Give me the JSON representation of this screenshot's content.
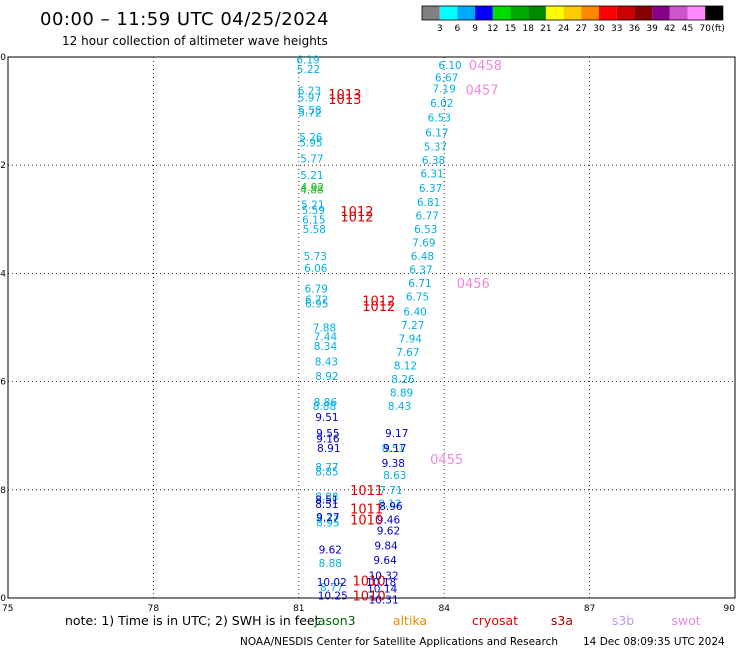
{
  "title": "00:00 – 11:59 UTC 04/25/2024",
  "subtitle": "12 hour collection of altimeter wave heights",
  "colorbar": {
    "labels": [
      "3",
      "6",
      "9",
      "12",
      "15",
      "18",
      "21",
      "24",
      "27",
      "30",
      "33",
      "36",
      "39",
      "42",
      "45",
      "70"
    ],
    "unit": "(ft)",
    "colors": [
      "#808080",
      "#00ffff",
      "#00aaff",
      "#0000ff",
      "#00dd00",
      "#00aa00",
      "#008800",
      "#ffff00",
      "#ffcc00",
      "#ff8800",
      "#ff0000",
      "#cc0000",
      "#880000",
      "#880088",
      "#cc55cc",
      "#ff88ff",
      "#000000"
    ]
  },
  "chart_data": {
    "type": "scatter",
    "xlim": [
      75,
      90
    ],
    "ylim": [
      -10,
      0
    ],
    "x_ticks": [
      "75",
      "78",
      "81",
      "84",
      "87",
      "90"
    ],
    "y_ticks": [
      "0",
      "-2",
      "-4",
      "-6",
      "-8",
      "-10"
    ],
    "grid": true,
    "series": [
      {
        "name": "jason3",
        "color": "#00b0e0",
        "points": [
          {
            "x": 81.19,
            "y": -0.05,
            "v": "6.19"
          },
          {
            "x": 81.2,
            "y": -0.22,
            "v": "5.22"
          },
          {
            "x": 81.22,
            "y": -0.62,
            "v": "6.23"
          },
          {
            "x": 81.22,
            "y": -0.75,
            "v": "5.97"
          },
          {
            "x": 81.23,
            "y": -0.98,
            "v": "5.58"
          },
          {
            "x": 81.23,
            "y": -1.03,
            "v": "5.72"
          },
          {
            "x": 81.25,
            "y": -1.48,
            "v": "5.26"
          },
          {
            "x": 81.25,
            "y": -1.58,
            "v": "5.95"
          },
          {
            "x": 81.27,
            "y": -1.88,
            "v": "5.77"
          },
          {
            "x": 81.27,
            "y": -2.18,
            "v": "5.21"
          },
          {
            "x": 81.29,
            "y": -2.73,
            "v": "5.21"
          },
          {
            "x": 81.3,
            "y": -2.83,
            "v": "5.59"
          },
          {
            "x": 81.31,
            "y": -3.0,
            "v": "6.15"
          },
          {
            "x": 81.32,
            "y": -3.18,
            "v": "5.58"
          },
          {
            "x": 81.34,
            "y": -3.68,
            "v": "5.73"
          },
          {
            "x": 81.35,
            "y": -3.9,
            "v": "6.06"
          },
          {
            "x": 81.36,
            "y": -4.28,
            "v": "6.79"
          },
          {
            "x": 81.37,
            "y": -4.48,
            "v": "6.72"
          },
          {
            "x": 81.37,
            "y": -4.56,
            "v": "6.95"
          },
          {
            "x": 81.53,
            "y": -6.45,
            "v": "8.88"
          },
          {
            "x": 81.58,
            "y": -7.58,
            "v": "8.77"
          },
          {
            "x": 81.58,
            "y": -7.66,
            "v": "8.85"
          },
          {
            "x": 81.58,
            "y": -8.12,
            "v": "8.88"
          },
          {
            "x": 81.6,
            "y": -8.53,
            "v": "8.72"
          },
          {
            "x": 81.6,
            "y": -8.6,
            "v": "8.95"
          },
          {
            "x": 81.65,
            "y": -9.35,
            "v": "8.88"
          },
          {
            "x": 81.68,
            "y": -9.8,
            "v": "8.77"
          },
          {
            "x": 84.12,
            "y": -0.15,
            "v": "6.10"
          },
          {
            "x": 84.05,
            "y": -0.38,
            "v": "6.67"
          },
          {
            "x": 84.0,
            "y": -0.58,
            "v": "7.19"
          },
          {
            "x": 83.95,
            "y": -0.85,
            "v": "6.02"
          },
          {
            "x": 83.9,
            "y": -1.12,
            "v": "6.53"
          },
          {
            "x": 83.85,
            "y": -1.4,
            "v": "6.17"
          },
          {
            "x": 83.82,
            "y": -1.65,
            "v": "5.37"
          },
          {
            "x": 83.78,
            "y": -1.9,
            "v": "6.38"
          },
          {
            "x": 83.75,
            "y": -2.15,
            "v": "6.31"
          },
          {
            "x": 83.72,
            "y": -2.42,
            "v": "6.37"
          },
          {
            "x": 83.68,
            "y": -2.68,
            "v": "6.81"
          },
          {
            "x": 83.65,
            "y": -2.93,
            "v": "6.77"
          },
          {
            "x": 83.62,
            "y": -3.18,
            "v": "6.53"
          },
          {
            "x": 83.58,
            "y": -3.43,
            "v": "7.69"
          },
          {
            "x": 83.55,
            "y": -3.68,
            "v": "6.48"
          },
          {
            "x": 83.52,
            "y": -3.93,
            "v": "6.37"
          },
          {
            "x": 83.5,
            "y": -4.18,
            "v": "6.71"
          },
          {
            "x": 83.45,
            "y": -4.43,
            "v": "6.75"
          },
          {
            "x": 83.4,
            "y": -4.7,
            "v": "6.40"
          },
          {
            "x": 83.35,
            "y": -4.95,
            "v": "7.27"
          },
          {
            "x": 83.3,
            "y": -5.2,
            "v": "7.94"
          },
          {
            "x": 83.25,
            "y": -5.45,
            "v": "7.67"
          },
          {
            "x": 83.2,
            "y": -5.7,
            "v": "8.12"
          },
          {
            "x": 83.15,
            "y": -5.95,
            "v": "8.26"
          },
          {
            "x": 83.12,
            "y": -6.2,
            "v": "8.89"
          },
          {
            "x": 83.08,
            "y": -6.45,
            "v": "8.43"
          },
          {
            "x": 82.95,
            "y": -7.23,
            "v": "8.51"
          },
          {
            "x": 82.98,
            "y": -7.73,
            "v": "8.63"
          },
          {
            "x": 82.9,
            "y": -8.0,
            "v": "7.71"
          },
          {
            "x": 82.88,
            "y": -8.25,
            "v": "8.12"
          },
          {
            "x": 81.53,
            "y": -5.0,
            "v": "7.88"
          },
          {
            "x": 81.55,
            "y": -5.17,
            "v": "7.44"
          },
          {
            "x": 81.55,
            "y": -5.34,
            "v": "8.34"
          },
          {
            "x": 81.57,
            "y": -5.63,
            "v": "8.43"
          },
          {
            "x": 81.58,
            "y": -5.9,
            "v": "8.92"
          },
          {
            "x": 81.55,
            "y": -6.38,
            "v": "8.86"
          }
        ]
      },
      {
        "name": "jason3-green",
        "color": "#22bb22",
        "points": [
          {
            "x": 81.28,
            "y": -2.4,
            "v": "4.92"
          },
          {
            "x": 81.27,
            "y": -2.45,
            "v": "4.88"
          }
        ]
      },
      {
        "name": "sentinel-blue",
        "color": "#0000cc",
        "points": [
          {
            "x": 81.58,
            "y": -6.65,
            "v": "9.51"
          },
          {
            "x": 81.6,
            "y": -6.95,
            "v": "9.55"
          },
          {
            "x": 81.6,
            "y": -7.05,
            "v": "9.16"
          },
          {
            "x": 81.62,
            "y": -7.23,
            "v": "8.91"
          },
          {
            "x": 81.58,
            "y": -8.18,
            "v": "8.51"
          },
          {
            "x": 81.58,
            "y": -8.26,
            "v": "8.51"
          },
          {
            "x": 81.6,
            "y": -8.5,
            "v": "9.27"
          },
          {
            "x": 81.65,
            "y": -9.1,
            "v": "9.62"
          },
          {
            "x": 81.68,
            "y": -9.7,
            "v": "10.02"
          },
          {
            "x": 81.7,
            "y": -9.95,
            "v": "10.25"
          },
          {
            "x": 83.02,
            "y": -6.95,
            "v": "9.17"
          },
          {
            "x": 82.98,
            "y": -7.23,
            "v": "9.17"
          },
          {
            "x": 82.95,
            "y": -7.5,
            "v": "9.38"
          },
          {
            "x": 82.9,
            "y": -8.3,
            "v": "8.96"
          },
          {
            "x": 82.85,
            "y": -8.55,
            "v": "9.46"
          },
          {
            "x": 82.85,
            "y": -8.75,
            "v": "9.62"
          },
          {
            "x": 82.8,
            "y": -9.03,
            "v": "9.84"
          },
          {
            "x": 82.78,
            "y": -9.3,
            "v": "9.64"
          },
          {
            "x": 82.75,
            "y": -9.58,
            "v": "10.32"
          },
          {
            "x": 82.7,
            "y": -9.7,
            "v": "10.18"
          },
          {
            "x": 82.72,
            "y": -9.82,
            "v": "10.14"
          },
          {
            "x": 82.75,
            "y": -10.03,
            "v": "10.31"
          }
        ]
      }
    ],
    "time_labels": [
      {
        "x": 81.95,
        "y": -0.68,
        "v": "1013",
        "color": "#dd0000"
      },
      {
        "x": 81.95,
        "y": -0.78,
        "v": "1013",
        "color": "#dd0000"
      },
      {
        "x": 82.2,
        "y": -2.85,
        "v": "1012",
        "color": "#dd0000"
      },
      {
        "x": 82.2,
        "y": -2.95,
        "v": "1012",
        "color": "#dd0000"
      },
      {
        "x": 82.65,
        "y": -4.5,
        "v": "1012",
        "color": "#dd0000"
      },
      {
        "x": 82.65,
        "y": -4.6,
        "v": "1012",
        "color": "#dd0000"
      },
      {
        "x": 82.4,
        "y": -8.0,
        "v": "1011",
        "color": "#dd0000"
      },
      {
        "x": 82.4,
        "y": -8.35,
        "v": "1011",
        "color": "#dd0000"
      },
      {
        "x": 82.4,
        "y": -8.55,
        "v": "1010",
        "color": "#dd0000"
      },
      {
        "x": 82.45,
        "y": -9.68,
        "v": "1010",
        "color": "#dd0000"
      },
      {
        "x": 82.45,
        "y": -9.95,
        "v": "1010",
        "color": "#dd0000"
      },
      {
        "x": 84.85,
        "y": -0.15,
        "v": "0458",
        "color": "#ee88dd"
      },
      {
        "x": 84.78,
        "y": -0.6,
        "v": "0457",
        "color": "#ee88dd"
      },
      {
        "x": 84.6,
        "y": -4.18,
        "v": "0456",
        "color": "#ee88dd"
      },
      {
        "x": 84.05,
        "y": -7.43,
        "v": "0455",
        "color": "#ee88dd"
      }
    ]
  },
  "note": {
    "prefix": "note:  1) Time is in UTC;  2) SWH is in feet",
    "satellites": [
      {
        "name": "jason3",
        "color": "#006600"
      },
      {
        "name": "altika",
        "color": "#ee8800"
      },
      {
        "name": "cryosat",
        "color": "#ee0000"
      },
      {
        "name": "s3a",
        "color": "#aa0000"
      },
      {
        "name": "s3b",
        "color": "#bb99ee"
      },
      {
        "name": "swot",
        "color": "#ee88dd"
      }
    ]
  },
  "footer": {
    "center": "NOAA/NESDIS Center for Satellite Applications and Research",
    "timestamp": "14 Dec 08:09:35 UTC 2024"
  }
}
